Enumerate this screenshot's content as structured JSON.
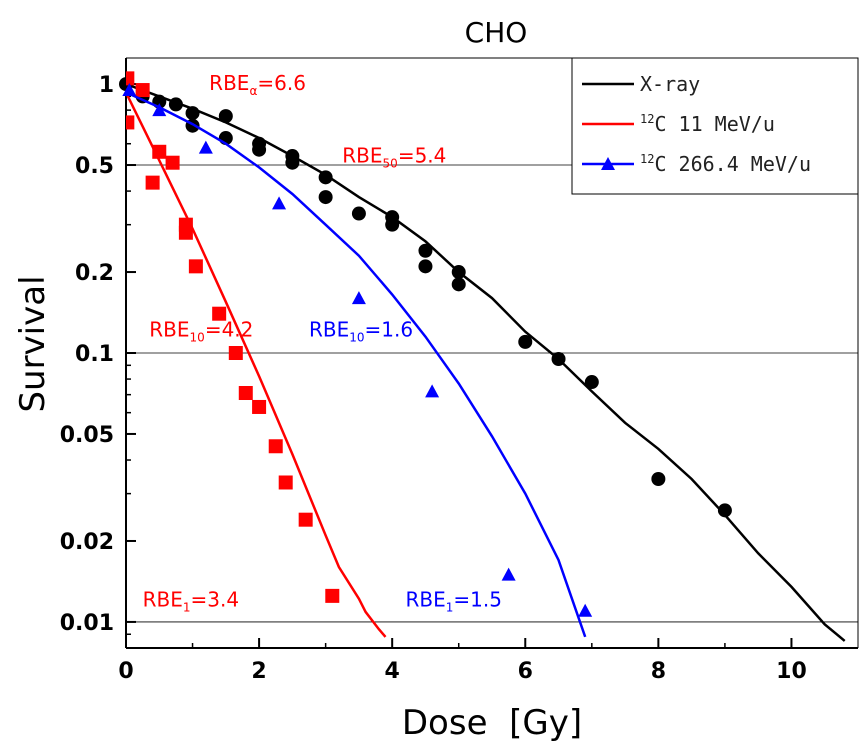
{
  "chart_data": {
    "type": "scatter",
    "title": "CHO",
    "xlabel": "Dose  [Gy]",
    "ylabel": "Survival",
    "xlim": [
      0,
      11
    ],
    "ylim": [
      0.008,
      1.25
    ],
    "yscale": "log",
    "xticks": [
      0,
      2,
      4,
      6,
      8,
      10
    ],
    "xtick_labels": [
      "0",
      "2",
      "4",
      "6",
      "8",
      "10"
    ],
    "yticks": [
      1,
      0.5,
      0.2,
      0.1,
      0.05,
      0.02,
      0.01
    ],
    "ytick_labels": [
      "1",
      "0.5",
      "0.2",
      "0.1",
      "0.05",
      "0.02",
      "0.01"
    ],
    "reference_lines": [
      0.5,
      0.1,
      0.01
    ],
    "legend_position": "top-right",
    "colors": {
      "xray": "#000000",
      "c11": "#ff0000",
      "c266": "#0000ff"
    },
    "series": [
      {
        "name": "X-ray",
        "legend_label": "X-ray",
        "marker": "circle",
        "color": "#000000",
        "points": [
          [
            0,
            1.0
          ],
          [
            0.25,
            0.9
          ],
          [
            0.5,
            0.86
          ],
          [
            0.75,
            0.84
          ],
          [
            1.0,
            0.78
          ],
          [
            1.0,
            0.7
          ],
          [
            1.5,
            0.76
          ],
          [
            1.5,
            0.63
          ],
          [
            2.0,
            0.6
          ],
          [
            2.0,
            0.57
          ],
          [
            2.5,
            0.54
          ],
          [
            2.5,
            0.51
          ],
          [
            3.0,
            0.45
          ],
          [
            3.0,
            0.38
          ],
          [
            3.5,
            0.33
          ],
          [
            4.0,
            0.32
          ],
          [
            4.0,
            0.3
          ],
          [
            4.5,
            0.24
          ],
          [
            4.5,
            0.21
          ],
          [
            5.0,
            0.2
          ],
          [
            5.0,
            0.18
          ],
          [
            6.0,
            0.11
          ],
          [
            6.5,
            0.095
          ],
          [
            7.0,
            0.078
          ],
          [
            8.0,
            0.034
          ],
          [
            9.0,
            0.026
          ]
        ],
        "fit": [
          [
            0,
            1.0
          ],
          [
            0.5,
            0.9
          ],
          [
            1,
            0.81
          ],
          [
            1.5,
            0.72
          ],
          [
            2,
            0.63
          ],
          [
            2.5,
            0.54
          ],
          [
            3,
            0.46
          ],
          [
            3.5,
            0.38
          ],
          [
            4,
            0.32
          ],
          [
            4.5,
            0.26
          ],
          [
            5,
            0.2
          ],
          [
            5.5,
            0.16
          ],
          [
            6,
            0.12
          ],
          [
            6.5,
            0.095
          ],
          [
            7,
            0.072
          ],
          [
            7.5,
            0.055
          ],
          [
            8,
            0.044
          ],
          [
            8.5,
            0.034
          ],
          [
            9,
            0.025
          ],
          [
            9.5,
            0.018
          ],
          [
            10,
            0.0135
          ],
          [
            10.5,
            0.0098
          ],
          [
            10.8,
            0.0085
          ]
        ]
      },
      {
        "name": "12C 11 MeV/u",
        "legend_mass": "12",
        "legend_label": "C  11 MeV/u",
        "marker": "square",
        "color": "#ff0000",
        "points": [
          [
            0.02,
            1.05
          ],
          [
            0.02,
            0.72
          ],
          [
            0.25,
            0.95
          ],
          [
            0.4,
            0.43
          ],
          [
            0.5,
            0.56
          ],
          [
            0.7,
            0.51
          ],
          [
            0.9,
            0.3
          ],
          [
            0.9,
            0.28
          ],
          [
            1.05,
            0.21
          ],
          [
            1.4,
            0.14
          ],
          [
            1.65,
            0.1
          ],
          [
            1.8,
            0.071
          ],
          [
            2.0,
            0.063
          ],
          [
            2.25,
            0.045
          ],
          [
            2.4,
            0.033
          ],
          [
            2.7,
            0.024
          ],
          [
            3.1,
            0.0125
          ]
        ],
        "fit": [
          [
            0,
            0.93
          ],
          [
            0.5,
            0.52
          ],
          [
            1,
            0.29
          ],
          [
            1.5,
            0.155
          ],
          [
            2,
            0.082
          ],
          [
            2.5,
            0.042
          ],
          [
            3,
            0.021
          ],
          [
            3.2,
            0.016
          ],
          [
            3.5,
            0.0122
          ],
          [
            3.6,
            0.0109
          ],
          [
            3.8,
            0.0094
          ],
          [
            3.9,
            0.0088
          ]
        ]
      },
      {
        "name": "12C 266.4 MeV/u",
        "legend_mass": "12",
        "legend_label": "C  266.4 MeV/u",
        "marker": "triangle",
        "color": "#0000ff",
        "points": [
          [
            0.05,
            0.95
          ],
          [
            0.5,
            0.8
          ],
          [
            1.2,
            0.58
          ],
          [
            2.3,
            0.36
          ],
          [
            3.5,
            0.16
          ],
          [
            4.6,
            0.072
          ],
          [
            5.75,
            0.015
          ],
          [
            6.9,
            0.011
          ]
        ],
        "fit": [
          [
            0,
            0.93
          ],
          [
            0.5,
            0.82
          ],
          [
            1,
            0.71
          ],
          [
            1.5,
            0.6
          ],
          [
            2,
            0.49
          ],
          [
            2.5,
            0.39
          ],
          [
            3,
            0.3
          ],
          [
            3.5,
            0.23
          ],
          [
            4,
            0.165
          ],
          [
            4.5,
            0.115
          ],
          [
            5,
            0.077
          ],
          [
            5.5,
            0.049
          ],
          [
            6,
            0.03
          ],
          [
            6.5,
            0.017
          ],
          [
            6.9,
            0.0088
          ]
        ]
      }
    ],
    "annotations": [
      {
        "base": "RBE",
        "sub": "α",
        "value": "=6.6",
        "color": "#ff0000",
        "x": 1.25,
        "y": 0.95
      },
      {
        "base": "RBE",
        "sub": "50",
        "value": "=5.4",
        "color": "#ff0000",
        "x": 3.25,
        "y": 0.51
      },
      {
        "base": "RBE",
        "sub": "10",
        "value": "=4.2",
        "color": "#ff0000",
        "x": 0.35,
        "y": 0.115
      },
      {
        "base": "RBE",
        "sub": "10",
        "value": "=1.6",
        "color": "#0000ff",
        "x": 2.75,
        "y": 0.115
      },
      {
        "base": "RBE",
        "sub": "1",
        "value": "=3.4",
        "color": "#ff0000",
        "x": 0.25,
        "y": 0.0114
      },
      {
        "base": "RBE",
        "sub": "1",
        "value": "=1.5",
        "color": "#0000ff",
        "x": 4.2,
        "y": 0.0114
      }
    ]
  }
}
